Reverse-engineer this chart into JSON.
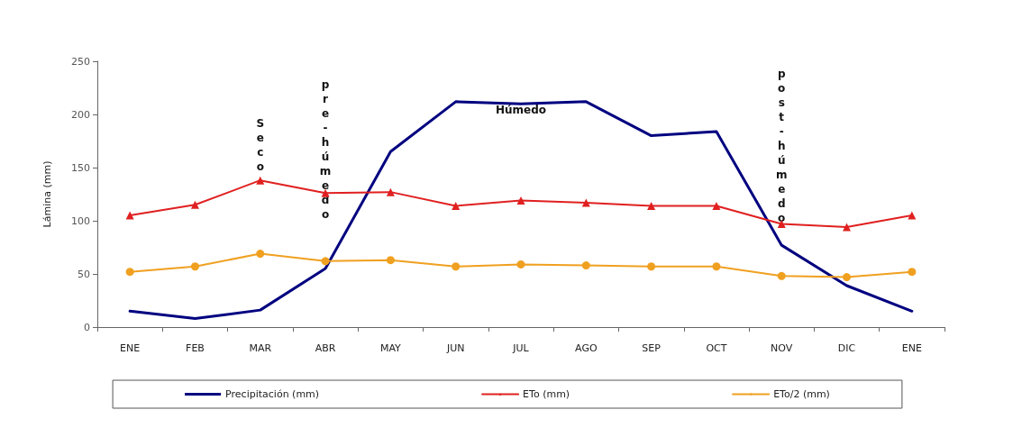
{
  "chart_data": {
    "type": "line",
    "ylabel": "Lámina (mm)",
    "categories": [
      "ENE",
      "FEB",
      "MAR",
      "ABR",
      "MAY",
      "JUN",
      "JUL",
      "AGO",
      "SEP",
      "OCT",
      "NOV",
      "DIC",
      "ENE"
    ],
    "series": [
      {
        "name": "Precipitación (mm)",
        "color": "#000080",
        "marker": "none",
        "values": [
          15,
          8,
          16,
          55,
          165,
          212,
          210,
          212,
          180,
          184,
          77,
          39,
          15
        ]
      },
      {
        "name": "ETo (mm)",
        "color": "#e02020",
        "marker": "triangle",
        "values": [
          105,
          115,
          138,
          126,
          127,
          114,
          119,
          117,
          114,
          114,
          97,
          94,
          105
        ]
      },
      {
        "name": "ETo/2 (mm)",
        "color": "#f0a020",
        "marker": "circle",
        "values": [
          52,
          57,
          69,
          62,
          63,
          57,
          59,
          58,
          57,
          57,
          48,
          47,
          52
        ]
      }
    ],
    "ylim": [
      0,
      250
    ],
    "yticks": [
      0,
      50,
      100,
      150,
      200,
      250
    ],
    "grid": false,
    "legend": "bottom",
    "annotations": [
      "Seco",
      "pre-húmedo",
      "Húmedo",
      "post-húmedo"
    ]
  }
}
